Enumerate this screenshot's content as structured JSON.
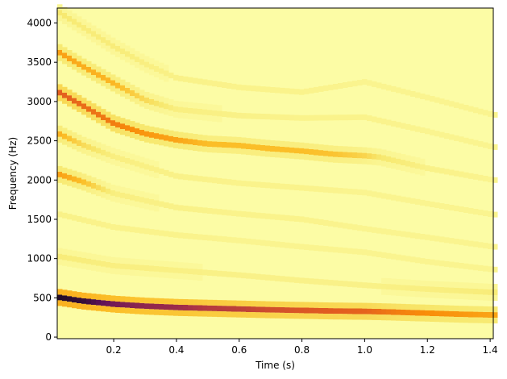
{
  "chart_data": {
    "type": "heatmap",
    "title": "",
    "xlabel": "Time (s)",
    "ylabel": "Frequency (Hz)",
    "xlim": [
      0.02,
      1.41
    ],
    "ylim": [
      -20,
      4190
    ],
    "grid": false,
    "legend": "none",
    "x_ticks": [
      0.2,
      0.4,
      0.6,
      0.8,
      1.0,
      1.2,
      1.4
    ],
    "x_tick_labels": [
      "0.2",
      "0.4",
      "0.6",
      "0.8",
      "1.0",
      "1.2",
      "1.4"
    ],
    "y_ticks": [
      0,
      500,
      1000,
      1500,
      2000,
      2500,
      3000,
      3500,
      4000
    ],
    "y_tick_labels": [
      "0",
      "500",
      "1000",
      "1500",
      "2000",
      "2500",
      "3000",
      "3500",
      "4000"
    ],
    "colormap": "inferno_r",
    "background_color": "#fcfca5",
    "series": [
      {
        "harmonic": 1,
        "points": [
          [
            0.02,
            510
          ],
          [
            0.1,
            460
          ],
          [
            0.2,
            420
          ],
          [
            0.3,
            395
          ],
          [
            0.4,
            378
          ],
          [
            0.5,
            368
          ],
          [
            0.6,
            358
          ],
          [
            0.7,
            348
          ],
          [
            0.8,
            340
          ],
          [
            0.9,
            333
          ],
          [
            1.0,
            328
          ],
          [
            1.1,
            318
          ],
          [
            1.2,
            305
          ],
          [
            1.3,
            292
          ],
          [
            1.41,
            282
          ]
        ],
        "intensity": [
          0.98,
          0.95,
          0.85,
          0.8,
          0.78,
          0.72,
          0.7,
          0.65,
          0.62,
          0.6,
          0.58,
          0.5,
          0.45,
          0.42,
          0.38
        ]
      },
      {
        "harmonic": 2,
        "points": [
          [
            0.02,
            1030
          ],
          [
            0.2,
            910
          ],
          [
            0.4,
            850
          ],
          [
            0.6,
            790
          ],
          [
            0.8,
            720
          ],
          [
            1.0,
            660
          ],
          [
            1.2,
            610
          ],
          [
            1.41,
            570
          ]
        ],
        "intensity": [
          0.12,
          0.1,
          0.09,
          0.08,
          0.08,
          0.08,
          0.1,
          0.12
        ]
      },
      {
        "harmonic": 3,
        "points": [
          [
            0.02,
            1570
          ],
          [
            0.2,
            1400
          ],
          [
            0.4,
            1300
          ],
          [
            0.6,
            1230
          ],
          [
            0.8,
            1150
          ],
          [
            1.0,
            1080
          ],
          [
            1.2,
            960
          ],
          [
            1.41,
            860
          ]
        ],
        "intensity": [
          0.08,
          0.07,
          0.07,
          0.06,
          0.06,
          0.06,
          0.06,
          0.06
        ]
      },
      {
        "harmonic": 4,
        "points": [
          [
            0.02,
            2080
          ],
          [
            0.1,
            1980
          ],
          [
            0.2,
            1830
          ],
          [
            0.4,
            1650
          ],
          [
            0.6,
            1570
          ],
          [
            0.8,
            1500
          ],
          [
            1.0,
            1380
          ],
          [
            1.2,
            1270
          ],
          [
            1.41,
            1150
          ]
        ],
        "intensity": [
          0.4,
          0.3,
          0.1,
          0.08,
          0.07,
          0.07,
          0.06,
          0.06,
          0.06
        ]
      },
      {
        "harmonic": 5,
        "points": [
          [
            0.02,
            2600
          ],
          [
            0.1,
            2450
          ],
          [
            0.2,
            2300
          ],
          [
            0.4,
            2050
          ],
          [
            0.6,
            1960
          ],
          [
            0.8,
            1900
          ],
          [
            1.0,
            1840
          ],
          [
            1.2,
            1700
          ],
          [
            1.41,
            1560
          ]
        ],
        "intensity": [
          0.35,
          0.2,
          0.1,
          0.08,
          0.07,
          0.07,
          0.06,
          0.06,
          0.06
        ]
      },
      {
        "harmonic": 6,
        "points": [
          [
            0.02,
            3130
          ],
          [
            0.1,
            2950
          ],
          [
            0.2,
            2720
          ],
          [
            0.3,
            2590
          ],
          [
            0.4,
            2510
          ],
          [
            0.5,
            2460
          ],
          [
            0.6,
            2440
          ],
          [
            0.7,
            2400
          ],
          [
            0.8,
            2370
          ],
          [
            0.9,
            2330
          ],
          [
            1.0,
            2310
          ],
          [
            1.05,
            2290
          ],
          [
            1.2,
            2150
          ],
          [
            1.41,
            2000
          ]
        ],
        "intensity": [
          0.6,
          0.55,
          0.5,
          0.42,
          0.38,
          0.3,
          0.3,
          0.3,
          0.3,
          0.28,
          0.22,
          0.15,
          0.08,
          0.06
        ]
      },
      {
        "harmonic": 7,
        "points": [
          [
            0.02,
            3640
          ],
          [
            0.1,
            3450
          ],
          [
            0.2,
            3230
          ],
          [
            0.3,
            3020
          ],
          [
            0.4,
            2900
          ],
          [
            0.6,
            2820
          ],
          [
            0.8,
            2790
          ],
          [
            1.0,
            2800
          ],
          [
            1.2,
            2620
          ],
          [
            1.41,
            2420
          ]
        ],
        "intensity": [
          0.4,
          0.35,
          0.32,
          0.2,
          0.1,
          0.08,
          0.07,
          0.07,
          0.06,
          0.06
        ]
      },
      {
        "harmonic": 8,
        "points": [
          [
            0.02,
            4150
          ],
          [
            0.1,
            3950
          ],
          [
            0.2,
            3700
          ],
          [
            0.3,
            3480
          ],
          [
            0.4,
            3300
          ],
          [
            0.6,
            3180
          ],
          [
            0.8,
            3120
          ],
          [
            1.0,
            3250
          ],
          [
            1.2,
            3050
          ],
          [
            1.41,
            2830
          ]
        ],
        "intensity": [
          0.15,
          0.12,
          0.12,
          0.1,
          0.08,
          0.07,
          0.07,
          0.06,
          0.06,
          0.06
        ]
      }
    ]
  }
}
